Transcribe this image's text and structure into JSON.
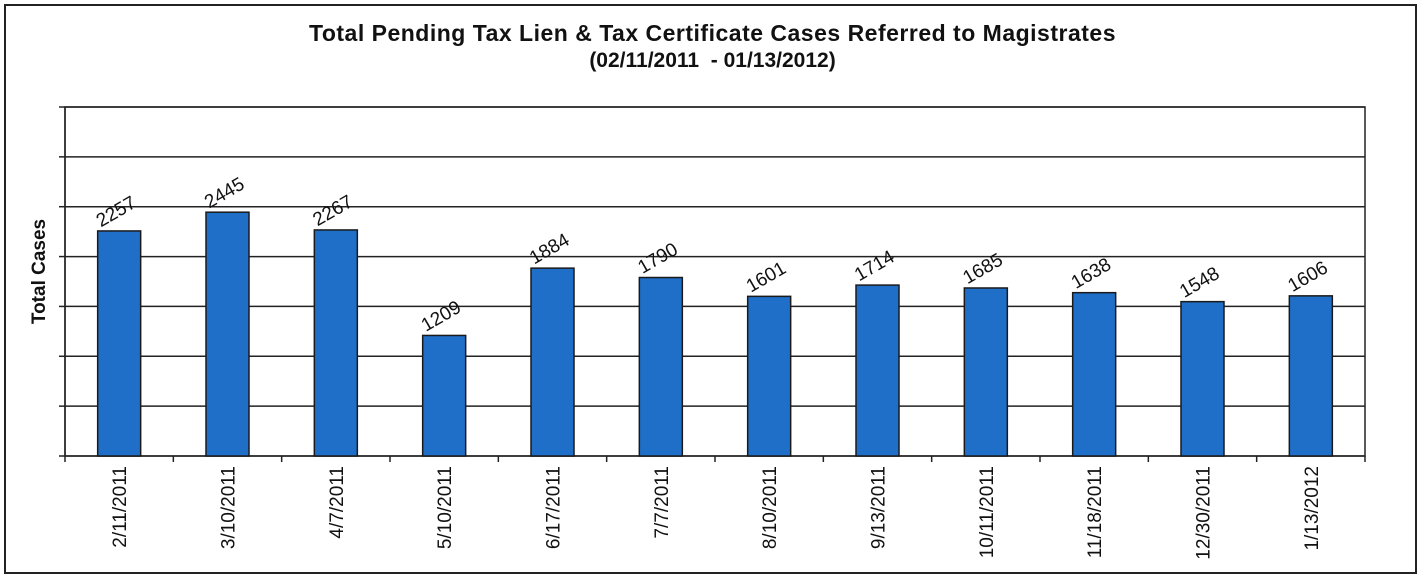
{
  "chart_data": {
    "type": "bar",
    "title": "Total Pending Tax Lien & Tax Certificate Cases Referred to Magistrates",
    "subtitle": "(02/11/2011  - 01/13/2012)",
    "xlabel": "",
    "ylabel": "Total Cases",
    "categories": [
      "2/11/2011",
      "3/10/2011",
      "4/7/2011",
      "5/10/2011",
      "6/17/2011",
      "7/7/2011",
      "8/10/2011",
      "9/13/2011",
      "10/11/2011",
      "11/18/2011",
      "12/30/2011",
      "1/13/2012"
    ],
    "values": [
      2257,
      2445,
      2267,
      1209,
      1884,
      1790,
      1601,
      1714,
      1685,
      1638,
      1548,
      1606
    ],
    "data_labels": [
      "2257",
      "2445",
      "2267",
      "1209",
      "1884",
      "1790",
      "1601",
      "1714",
      "1685",
      "1638",
      "1548",
      "1606"
    ],
    "ylim": [
      0,
      3500
    ],
    "gridlines": [
      500,
      1000,
      1500,
      2000,
      2500,
      3000,
      3500
    ],
    "grid": true,
    "legend": "none",
    "bar_color": "#1f6fc8"
  }
}
